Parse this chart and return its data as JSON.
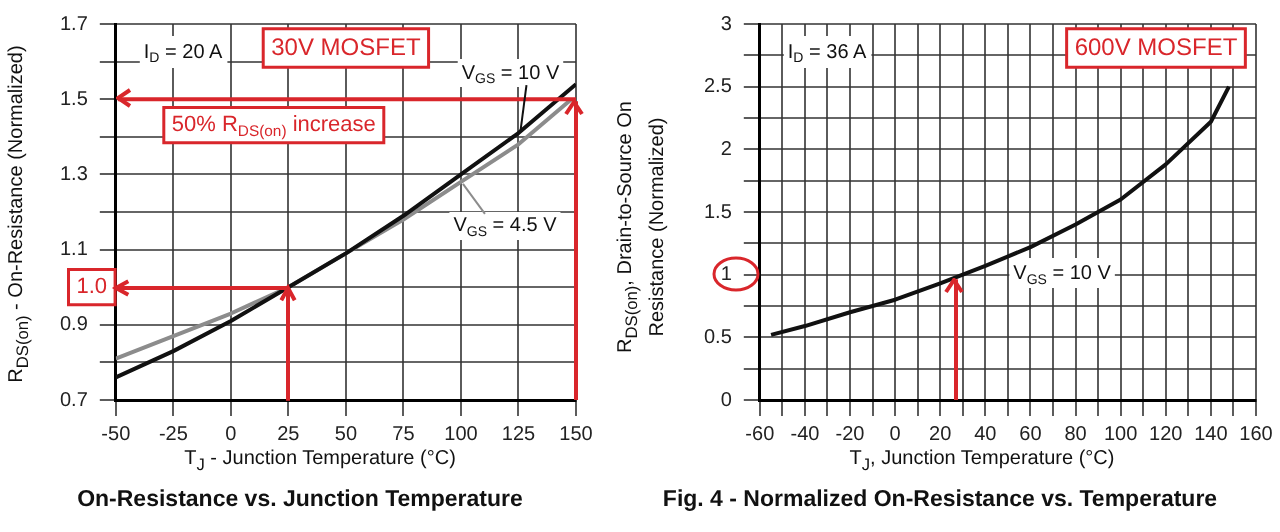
{
  "chart_data": [
    {
      "type": "line",
      "title": "On-Resistance vs. Junction Temperature",
      "xlabel": "T$_{J}$ - Junction Temperature (°C)",
      "ylabel": "R$_{DS(on)}$ - On-Resistance (Normalized)",
      "xlim": [
        -50,
        150
      ],
      "xticks": [
        -50,
        -25,
        0,
        25,
        50,
        75,
        100,
        125,
        150
      ],
      "ylim": [
        0.7,
        1.7
      ],
      "yticks": [
        0.7,
        {
          "value": 0.8,
          "label": null
        },
        0.9,
        {
          "value": 1.0,
          "label": null
        },
        1.1,
        {
          "value": 1.2,
          "label": null
        },
        1.3,
        {
          "value": 1.4,
          "label": null
        },
        1.5,
        {
          "value": 1.6,
          "label": null
        },
        1.7
      ],
      "grid": true,
      "series": [
        {
          "name": "V$_{GS}$ = 10 V",
          "color": "#111111",
          "x": [
            -50,
            -25,
            0,
            25,
            50,
            75,
            100,
            125,
            150
          ],
          "values": [
            0.76,
            0.83,
            0.91,
            1.0,
            1.09,
            1.19,
            1.3,
            1.41,
            1.54
          ]
        },
        {
          "name": "V$_{GS}$ = 4.5 V",
          "color": "#8c8c8c",
          "x": [
            -50,
            -25,
            0,
            25,
            50,
            75,
            100,
            125,
            148
          ],
          "values": [
            0.81,
            0.87,
            0.93,
            1.0,
            1.09,
            1.18,
            1.28,
            1.38,
            1.5
          ]
        }
      ],
      "ref_lines": [
        {
          "axis": "y",
          "value": 1.5,
          "label": "50% R$_{DS(on)}$ increase",
          "color": "#d9262b"
        },
        {
          "axis": "x",
          "value": 150,
          "color": "#d9262b"
        }
      ],
      "annotations": [
        "I$_{D}$ = 20 A",
        "30V MOSFET",
        {
          "text": "1.0",
          "x": 25,
          "y": 1.0
        }
      ]
    },
    {
      "type": "line",
      "title": "Fig. 4 - Normalized On-Resistance vs. Temperature",
      "xlabel": "T$_{J}$, Junction Temperature (°C)",
      "ylabel": "R$_{DS(on)}$, Drain-to-Source On Resistance (Normalized)",
      "xlim": [
        -60,
        160
      ],
      "xticks": [
        -60,
        {
          "value": -50,
          "label": null
        },
        -40,
        {
          "value": -30,
          "label": null
        },
        -20,
        {
          "value": -10,
          "label": null
        },
        0,
        {
          "value": 10,
          "label": null
        },
        20,
        {
          "value": 30,
          "label": null
        },
        40,
        {
          "value": 50,
          "label": null
        },
        60,
        {
          "value": 70,
          "label": null
        },
        80,
        {
          "value": 90,
          "label": null
        },
        100,
        {
          "value": 110,
          "label": null
        },
        120,
        {
          "value": 130,
          "label": null
        },
        140,
        {
          "value": 150,
          "label": null
        },
        160
      ],
      "ylim": [
        0,
        3
      ],
      "yticks": [
        0,
        {
          "value": 0.25,
          "label": null
        },
        0.5,
        {
          "value": 0.75,
          "label": null
        },
        1,
        {
          "value": 1.25,
          "label": null
        },
        1.5,
        {
          "value": 1.75,
          "label": null
        },
        2,
        {
          "value": 2.25,
          "label": null
        },
        2.5,
        {
          "value": 2.75,
          "label": null
        },
        3
      ],
      "grid": true,
      "series": [
        {
          "name": "V$_{GS}$ = 10 V",
          "color": "#111111",
          "x": [
            -55,
            -40,
            -20,
            0,
            20,
            40,
            60,
            80,
            100,
            120,
            140,
            148
          ],
          "values": [
            0.52,
            0.59,
            0.7,
            0.8,
            0.93,
            1.07,
            1.22,
            1.4,
            1.6,
            1.88,
            2.22,
            2.5
          ]
        }
      ],
      "ref_lines": [
        {
          "axis": "x",
          "value": 27,
          "color": "#d9262b"
        }
      ],
      "annotations": [
        "I$_{D}$ = 36 A",
        "600V MOSFET"
      ]
    }
  ]
}
